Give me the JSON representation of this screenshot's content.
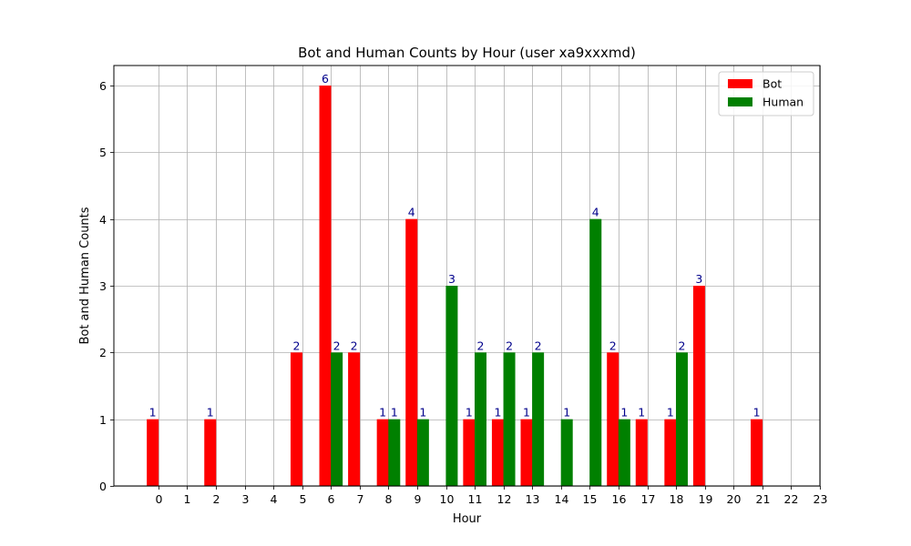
{
  "chart_data": {
    "type": "bar",
    "title": "Bot and Human Counts by Hour (user xa9xxxmd)",
    "xlabel": "Hour",
    "ylabel": "Bot and Human Counts",
    "x_ticks": [
      "0",
      "1",
      "2",
      "3",
      "4",
      "5",
      "6",
      "7",
      "8",
      "9",
      "10",
      "11",
      "12",
      "13",
      "14",
      "15",
      "16",
      "17",
      "18",
      "19",
      "20",
      "21",
      "22",
      "23"
    ],
    "y_ticks": [
      0,
      1,
      2,
      3,
      4,
      5,
      6
    ],
    "xlim": [
      -1.55,
      23.0
    ],
    "ylim": [
      0,
      6.3
    ],
    "grid": true,
    "legend_position": "top-right",
    "bar_label_color": "#00008b",
    "series": [
      {
        "name": "Bot",
        "color": "#ff0000",
        "points": [
          {
            "x": -0.2,
            "value": 1
          },
          {
            "x": 1.8,
            "value": 1
          },
          {
            "x": 4.8,
            "value": 2
          },
          {
            "x": 5.8,
            "value": 6
          },
          {
            "x": 6.8,
            "value": 2
          },
          {
            "x": 7.8,
            "value": 1
          },
          {
            "x": 8.8,
            "value": 4
          },
          {
            "x": 10.8,
            "value": 1
          },
          {
            "x": 11.8,
            "value": 1
          },
          {
            "x": 12.8,
            "value": 1
          },
          {
            "x": 15.8,
            "value": 2
          },
          {
            "x": 16.8,
            "value": 1
          },
          {
            "x": 17.8,
            "value": 1
          },
          {
            "x": 18.8,
            "value": 3
          },
          {
            "x": 20.8,
            "value": 1
          }
        ]
      },
      {
        "name": "Human",
        "color": "#008000",
        "points": [
          {
            "x": 6.2,
            "value": 2
          },
          {
            "x": 8.2,
            "value": 1
          },
          {
            "x": 9.2,
            "value": 1
          },
          {
            "x": 10.2,
            "value": 3
          },
          {
            "x": 11.2,
            "value": 2
          },
          {
            "x": 12.2,
            "value": 2
          },
          {
            "x": 13.2,
            "value": 2
          },
          {
            "x": 14.2,
            "value": 1
          },
          {
            "x": 15.2,
            "value": 4
          },
          {
            "x": 16.2,
            "value": 1
          },
          {
            "x": 18.2,
            "value": 2
          }
        ]
      }
    ]
  }
}
